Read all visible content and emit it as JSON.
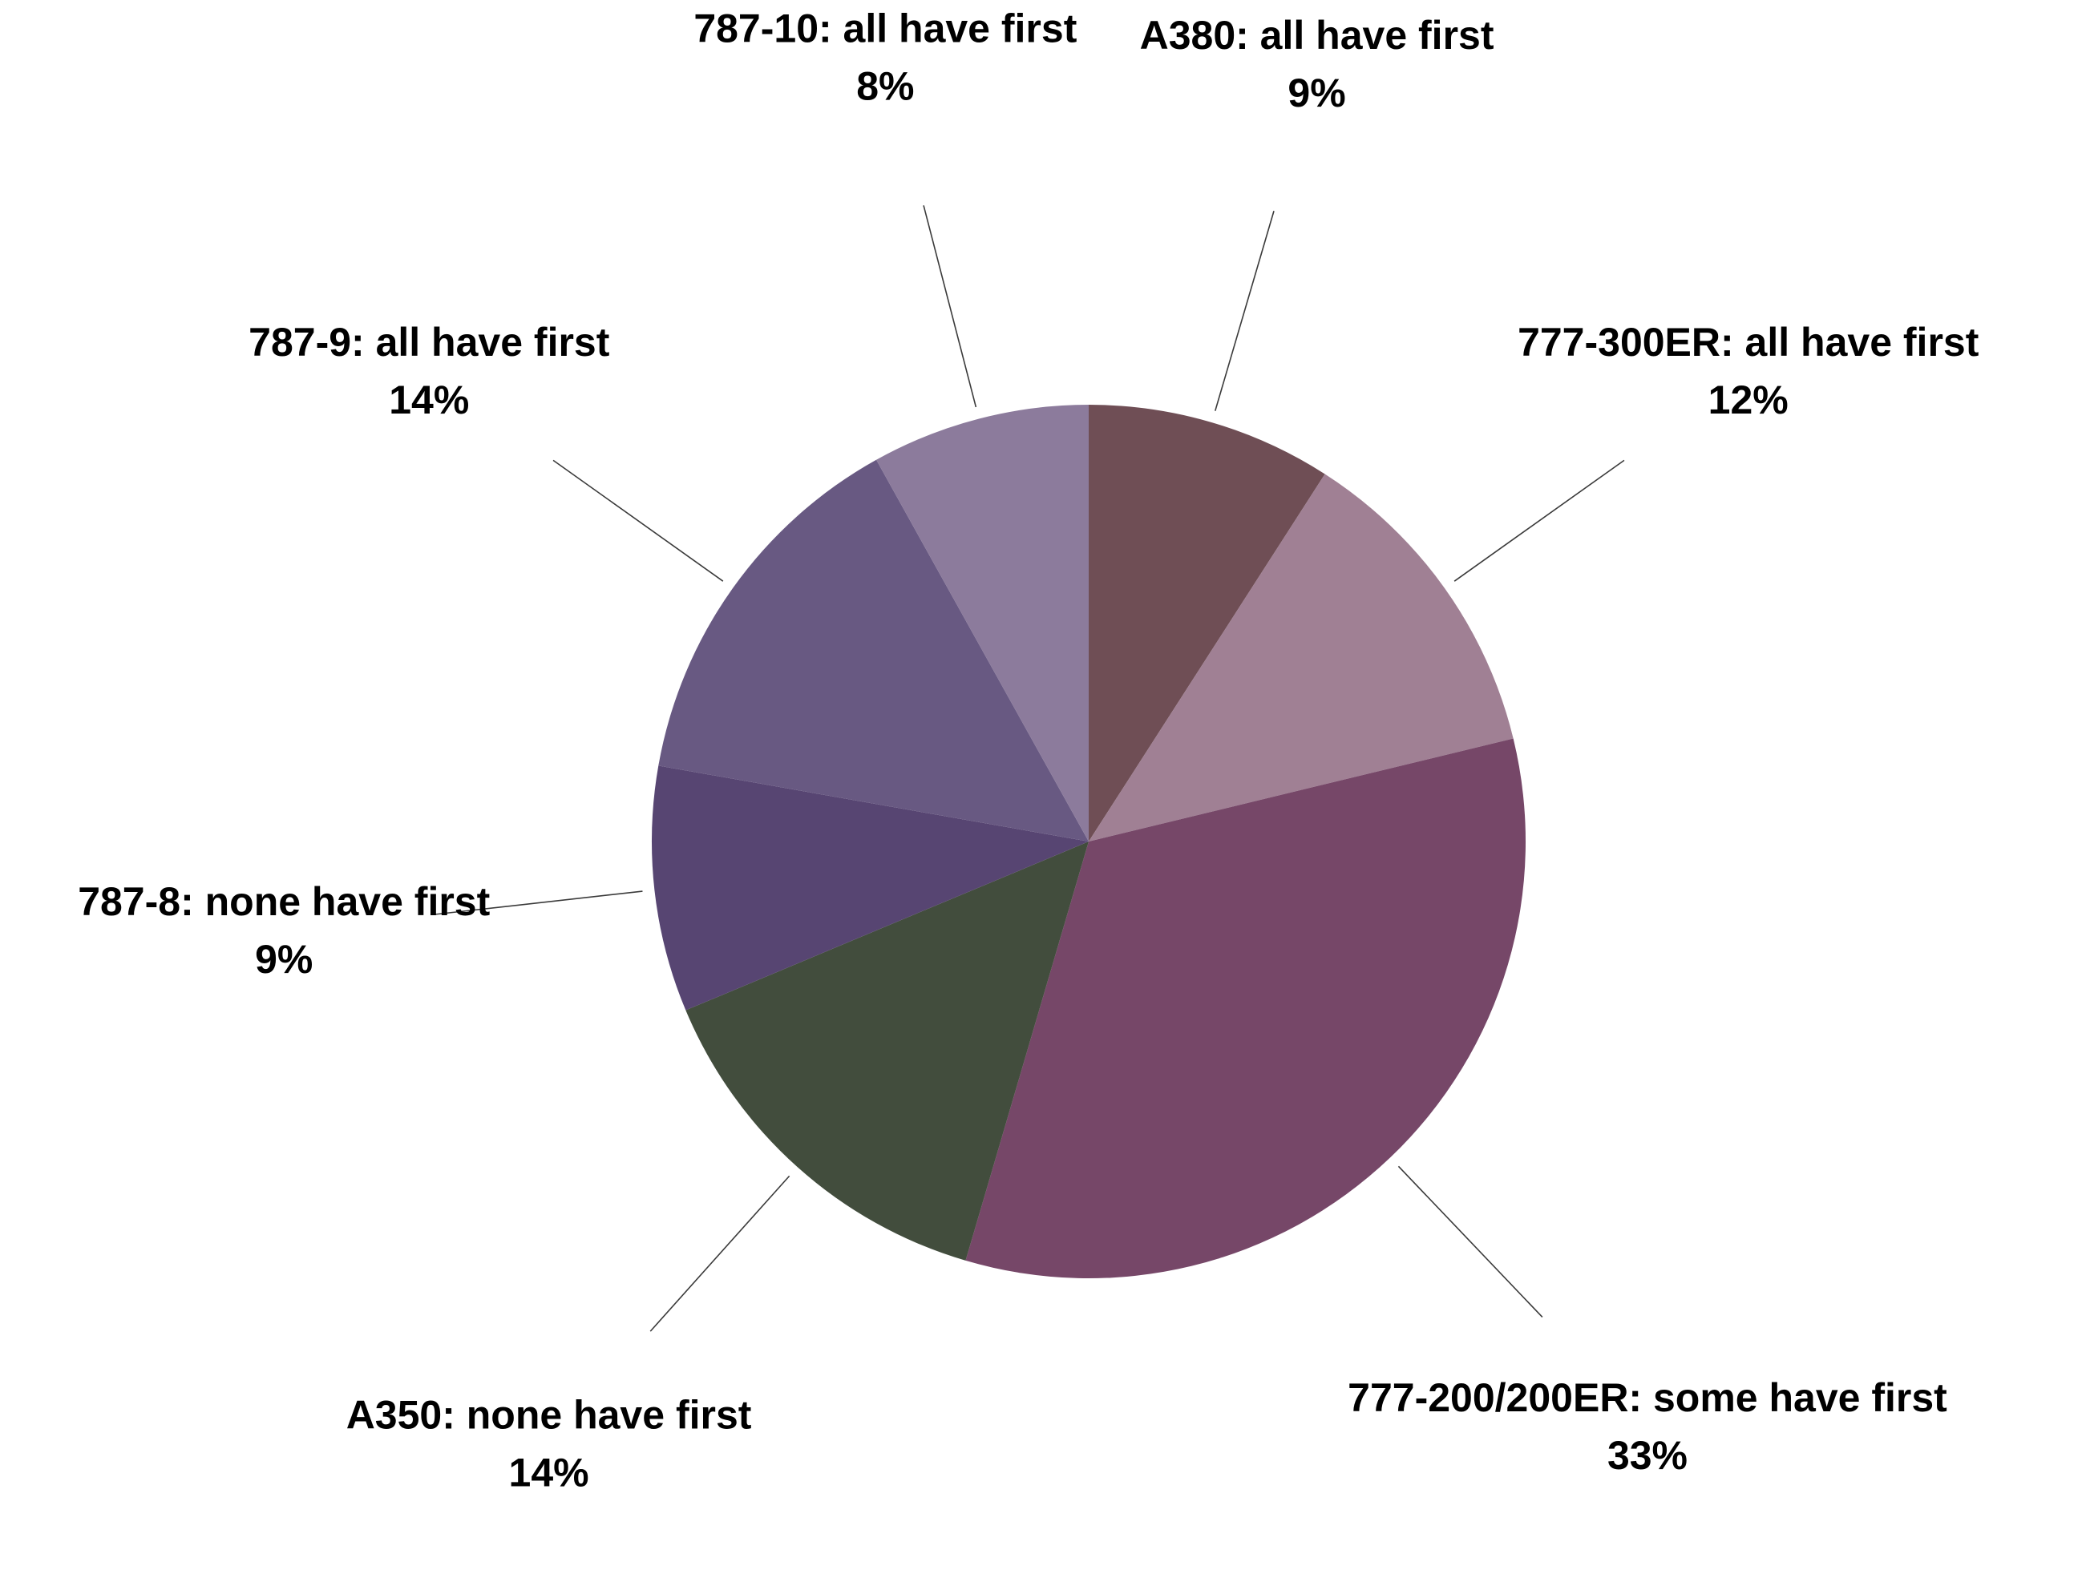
{
  "chart_data": {
    "type": "pie",
    "title": "",
    "start_angle_deg": 0,
    "direction": "clockwise",
    "legend": "none",
    "slices": [
      {
        "label": "A380: all have first",
        "value": 9,
        "value_label": "9%",
        "color": "#6f4e55"
      },
      {
        "label": "777-300ER: all have first",
        "value": 12,
        "value_label": "12%",
        "color": "#a08094"
      },
      {
        "label": "777-200/200ER: some have first",
        "value": 33,
        "value_label": "33%",
        "color": "#764768"
      },
      {
        "label": "A350: none have first",
        "value": 14,
        "value_label": "14%",
        "color": "#424d3d"
      },
      {
        "label": "787-8: none have first",
        "value": 9,
        "value_label": "9%",
        "color": "#574572"
      },
      {
        "label": "787-9: all have first",
        "value": 14,
        "value_label": "14%",
        "color": "#685982"
      },
      {
        "label": "787-10: all have first",
        "value": 8,
        "value_label": "8%",
        "color": "#8c7b9c"
      }
    ]
  }
}
